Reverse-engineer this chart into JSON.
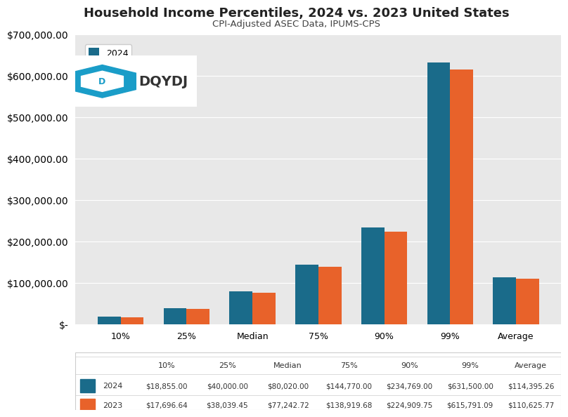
{
  "title": "Household Income Percentiles, 2024 vs. 2023 United States",
  "subtitle": "CPI-Adjusted ASEC Data, IPUMS-CPS",
  "categories": [
    "10%",
    "25%",
    "Median",
    "75%",
    "90%",
    "99%",
    "Average"
  ],
  "values_2024": [
    18855.0,
    40000.0,
    80020.0,
    144770.0,
    234769.0,
    631500.0,
    114395.26
  ],
  "values_2023": [
    17696.64,
    38039.45,
    77242.72,
    138919.68,
    224909.75,
    615791.09,
    110625.77
  ],
  "color_2024": "#1a6b8a",
  "color_2023": "#e8622a",
  "background_color": "#e8e8e8",
  "ylim": [
    0,
    700000
  ],
  "yticks": [
    0,
    100000,
    200000,
    300000,
    400000,
    500000,
    600000,
    700000
  ],
  "legend_2024": "2024",
  "legend_2023": "2023",
  "table_labels_2024": [
    "$18,855.00",
    "$40,000.00",
    "$80,020.00",
    "$144,770.00",
    "$234,769.00",
    "$631,500.00",
    "$114,395.26"
  ],
  "table_labels_2023": [
    "$17,696.64",
    "$38,039.45",
    "$77,242.72",
    "$138,919.68",
    "$224,909.75",
    "$615,791.09",
    "$110,625.77"
  ]
}
